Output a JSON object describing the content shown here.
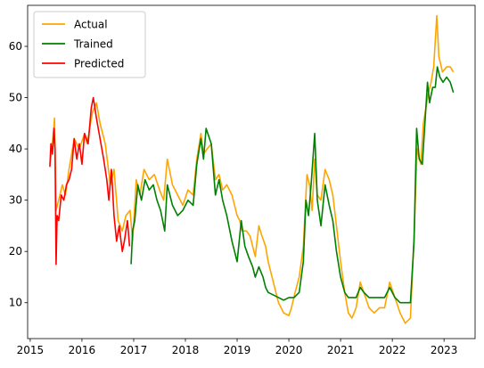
{
  "chart_data": {
    "type": "line",
    "title": "",
    "xlabel": "",
    "ylabel": "",
    "xlim": [
      2014.95,
      2023.6
    ],
    "ylim": [
      3,
      68
    ],
    "grid": false,
    "legend_position": "top-left",
    "x_ticks": [
      {
        "value": 2015,
        "label": "2015"
      },
      {
        "value": 2016,
        "label": "2016"
      },
      {
        "value": 2017,
        "label": "2017"
      },
      {
        "value": 2018,
        "label": "2018"
      },
      {
        "value": 2019,
        "label": "2019"
      },
      {
        "value": 2020,
        "label": "2020"
      },
      {
        "value": 2021,
        "label": "2021"
      },
      {
        "value": 2022,
        "label": "2022"
      },
      {
        "value": 2023,
        "label": "2023"
      }
    ],
    "y_ticks": [
      {
        "value": 10,
        "label": "10"
      },
      {
        "value": 20,
        "label": "20"
      },
      {
        "value": 30,
        "label": "30"
      },
      {
        "value": 40,
        "label": "40"
      },
      {
        "value": 50,
        "label": "50"
      },
      {
        "value": 60,
        "label": "60"
      }
    ],
    "series": [
      {
        "name": "Actual",
        "color": "#ffa500",
        "points": [
          [
            2015.38,
            37
          ],
          [
            2015.42,
            40
          ],
          [
            2015.47,
            46
          ],
          [
            2015.5,
            28
          ],
          [
            2015.55,
            30
          ],
          [
            2015.62,
            33
          ],
          [
            2015.68,
            31
          ],
          [
            2015.75,
            36
          ],
          [
            2015.85,
            42
          ],
          [
            2015.95,
            40
          ],
          [
            2016.05,
            43
          ],
          [
            2016.1,
            41
          ],
          [
            2016.2,
            47
          ],
          [
            2016.28,
            49
          ],
          [
            2016.35,
            45
          ],
          [
            2016.45,
            41
          ],
          [
            2016.55,
            33
          ],
          [
            2016.62,
            36
          ],
          [
            2016.7,
            26
          ],
          [
            2016.78,
            24
          ],
          [
            2016.85,
            27
          ],
          [
            2016.93,
            28
          ],
          [
            2016.98,
            22
          ],
          [
            2017.05,
            34
          ],
          [
            2017.12,
            31
          ],
          [
            2017.2,
            36
          ],
          [
            2017.3,
            34
          ],
          [
            2017.4,
            35
          ],
          [
            2017.5,
            32
          ],
          [
            2017.58,
            30
          ],
          [
            2017.65,
            38
          ],
          [
            2017.75,
            33
          ],
          [
            2017.85,
            31
          ],
          [
            2017.95,
            29
          ],
          [
            2018.05,
            32
          ],
          [
            2018.15,
            31
          ],
          [
            2018.22,
            38
          ],
          [
            2018.3,
            43
          ],
          [
            2018.35,
            39
          ],
          [
            2018.42,
            40
          ],
          [
            2018.5,
            41
          ],
          [
            2018.58,
            34
          ],
          [
            2018.65,
            35
          ],
          [
            2018.72,
            32
          ],
          [
            2018.8,
            33
          ],
          [
            2018.9,
            31
          ],
          [
            2019.0,
            27
          ],
          [
            2019.05,
            26
          ],
          [
            2019.1,
            24
          ],
          [
            2019.18,
            24
          ],
          [
            2019.25,
            23
          ],
          [
            2019.3,
            21
          ],
          [
            2019.35,
            19
          ],
          [
            2019.42,
            25
          ],
          [
            2019.48,
            23
          ],
          [
            2019.55,
            21
          ],
          [
            2019.6,
            18
          ],
          [
            2019.7,
            14
          ],
          [
            2019.8,
            10
          ],
          [
            2019.9,
            8
          ],
          [
            2020.0,
            7.5
          ],
          [
            2020.05,
            9
          ],
          [
            2020.12,
            12
          ],
          [
            2020.2,
            15
          ],
          [
            2020.28,
            21
          ],
          [
            2020.35,
            35
          ],
          [
            2020.4,
            33
          ],
          [
            2020.45,
            28
          ],
          [
            2020.5,
            38
          ],
          [
            2020.55,
            31
          ],
          [
            2020.62,
            30
          ],
          [
            2020.7,
            36
          ],
          [
            2020.78,
            34
          ],
          [
            2020.85,
            31
          ],
          [
            2020.92,
            25
          ],
          [
            2021.0,
            18
          ],
          [
            2021.08,
            12
          ],
          [
            2021.15,
            8
          ],
          [
            2021.22,
            7
          ],
          [
            2021.3,
            9
          ],
          [
            2021.38,
            14
          ],
          [
            2021.45,
            12
          ],
          [
            2021.55,
            9
          ],
          [
            2021.65,
            8
          ],
          [
            2021.75,
            9
          ],
          [
            2021.85,
            9
          ],
          [
            2021.95,
            14
          ],
          [
            2022.05,
            11
          ],
          [
            2022.15,
            8
          ],
          [
            2022.25,
            6
          ],
          [
            2022.35,
            7
          ],
          [
            2022.42,
            23
          ],
          [
            2022.48,
            40
          ],
          [
            2022.55,
            37
          ],
          [
            2022.6,
            45
          ],
          [
            2022.65,
            48
          ],
          [
            2022.7,
            51
          ],
          [
            2022.75,
            53
          ],
          [
            2022.8,
            56
          ],
          [
            2022.86,
            66
          ],
          [
            2022.9,
            58
          ],
          [
            2022.97,
            55
          ],
          [
            2023.05,
            56
          ],
          [
            2023.12,
            56
          ],
          [
            2023.18,
            55
          ]
        ]
      },
      {
        "name": "Trained",
        "color": "#008000",
        "points": [
          [
            2016.95,
            17.5
          ],
          [
            2016.98,
            24
          ],
          [
            2017.02,
            26
          ],
          [
            2017.08,
            33
          ],
          [
            2017.15,
            30
          ],
          [
            2017.22,
            34
          ],
          [
            2017.3,
            32
          ],
          [
            2017.38,
            33
          ],
          [
            2017.45,
            30
          ],
          [
            2017.52,
            28
          ],
          [
            2017.6,
            24
          ],
          [
            2017.65,
            33
          ],
          [
            2017.75,
            29
          ],
          [
            2017.85,
            27
          ],
          [
            2017.95,
            28
          ],
          [
            2018.05,
            30
          ],
          [
            2018.15,
            29
          ],
          [
            2018.22,
            37
          ],
          [
            2018.3,
            42
          ],
          [
            2018.35,
            38
          ],
          [
            2018.4,
            44
          ],
          [
            2018.5,
            41
          ],
          [
            2018.58,
            31
          ],
          [
            2018.65,
            34
          ],
          [
            2018.72,
            30
          ],
          [
            2018.8,
            27
          ],
          [
            2018.9,
            22
          ],
          [
            2019.0,
            18
          ],
          [
            2019.08,
            26
          ],
          [
            2019.15,
            21
          ],
          [
            2019.22,
            19
          ],
          [
            2019.3,
            17
          ],
          [
            2019.35,
            15
          ],
          [
            2019.42,
            17
          ],
          [
            2019.5,
            15
          ],
          [
            2019.55,
            13
          ],
          [
            2019.6,
            12
          ],
          [
            2019.7,
            11.5
          ],
          [
            2019.8,
            11
          ],
          [
            2019.9,
            10.5
          ],
          [
            2020.0,
            11
          ],
          [
            2020.1,
            11
          ],
          [
            2020.2,
            12
          ],
          [
            2020.28,
            18
          ],
          [
            2020.33,
            30
          ],
          [
            2020.38,
            27
          ],
          [
            2020.43,
            33
          ],
          [
            2020.5,
            43
          ],
          [
            2020.55,
            30
          ],
          [
            2020.62,
            25
          ],
          [
            2020.7,
            33
          ],
          [
            2020.78,
            29
          ],
          [
            2020.85,
            26
          ],
          [
            2020.92,
            20
          ],
          [
            2021.0,
            15
          ],
          [
            2021.08,
            12
          ],
          [
            2021.15,
            11
          ],
          [
            2021.22,
            11
          ],
          [
            2021.3,
            11
          ],
          [
            2021.38,
            13
          ],
          [
            2021.45,
            12
          ],
          [
            2021.55,
            11
          ],
          [
            2021.65,
            11
          ],
          [
            2021.75,
            11
          ],
          [
            2021.85,
            11
          ],
          [
            2021.95,
            13
          ],
          [
            2022.05,
            11
          ],
          [
            2022.15,
            10
          ],
          [
            2022.25,
            10
          ],
          [
            2022.35,
            10
          ],
          [
            2022.42,
            22
          ],
          [
            2022.47,
            44
          ],
          [
            2022.52,
            38
          ],
          [
            2022.58,
            37
          ],
          [
            2022.63,
            45
          ],
          [
            2022.68,
            53
          ],
          [
            2022.72,
            49
          ],
          [
            2022.78,
            52
          ],
          [
            2022.83,
            52
          ],
          [
            2022.87,
            56
          ],
          [
            2022.92,
            54
          ],
          [
            2022.98,
            53
          ],
          [
            2023.05,
            54
          ],
          [
            2023.12,
            53
          ],
          [
            2023.18,
            51
          ]
        ]
      },
      {
        "name": "Predicted",
        "color": "#ff0000",
        "points": [
          [
            2015.38,
            36.5
          ],
          [
            2015.4,
            41
          ],
          [
            2015.43,
            39
          ],
          [
            2015.46,
            44
          ],
          [
            2015.48,
            40
          ],
          [
            2015.5,
            17.5
          ],
          [
            2015.52,
            27
          ],
          [
            2015.55,
            26
          ],
          [
            2015.6,
            31
          ],
          [
            2015.65,
            30
          ],
          [
            2015.7,
            33
          ],
          [
            2015.75,
            34
          ],
          [
            2015.8,
            36
          ],
          [
            2015.85,
            42
          ],
          [
            2015.9,
            38
          ],
          [
            2015.95,
            41
          ],
          [
            2016.0,
            37
          ],
          [
            2016.05,
            43
          ],
          [
            2016.12,
            41
          ],
          [
            2016.18,
            48
          ],
          [
            2016.22,
            50
          ],
          [
            2016.28,
            46
          ],
          [
            2016.35,
            42
          ],
          [
            2016.42,
            38
          ],
          [
            2016.48,
            34
          ],
          [
            2016.52,
            30
          ],
          [
            2016.57,
            36
          ],
          [
            2016.62,
            27
          ],
          [
            2016.67,
            22
          ],
          [
            2016.72,
            25
          ],
          [
            2016.78,
            20
          ],
          [
            2016.82,
            22
          ],
          [
            2016.88,
            26
          ],
          [
            2016.92,
            21
          ]
        ]
      }
    ]
  }
}
